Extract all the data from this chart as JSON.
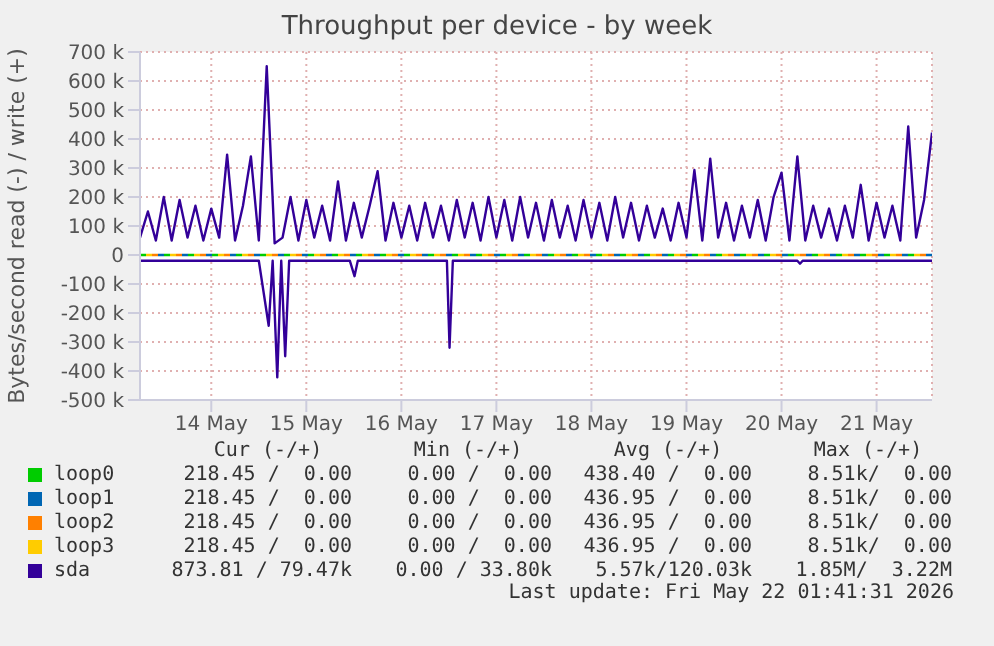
{
  "chart_data": {
    "type": "line",
    "title": "Throughput per device - by week",
    "ylabel": "Bytes/second read (-) / write (+)",
    "x": [
      "2026-05-13T18:00",
      "2026-05-13T20:00",
      "2026-05-13T22:00",
      "2026-05-14T00:00",
      "2026-05-14T02:00",
      "2026-05-14T04:00",
      "2026-05-14T06:00",
      "2026-05-14T08:00",
      "2026-05-14T10:00",
      "2026-05-14T12:00",
      "2026-05-14T14:00",
      "2026-05-14T16:00",
      "2026-05-14T18:00",
      "2026-05-14T20:00",
      "2026-05-14T22:00",
      "2026-05-15T00:00",
      "2026-05-15T02:00",
      "2026-05-15T04:00",
      "2026-05-15T06:00",
      "2026-05-15T08:00",
      "2026-05-15T10:00",
      "2026-05-15T12:00",
      "2026-05-15T14:00",
      "2026-05-15T16:00",
      "2026-05-15T18:00",
      "2026-05-15T20:00",
      "2026-05-15T22:00",
      "2026-05-16T00:00",
      "2026-05-16T02:00",
      "2026-05-16T04:00",
      "2026-05-16T06:00",
      "2026-05-16T08:00",
      "2026-05-16T10:00",
      "2026-05-16T12:00",
      "2026-05-16T14:00",
      "2026-05-16T16:00",
      "2026-05-16T18:00",
      "2026-05-16T20:00",
      "2026-05-16T22:00",
      "2026-05-17T00:00",
      "2026-05-17T02:00",
      "2026-05-17T04:00",
      "2026-05-17T06:00",
      "2026-05-17T08:00",
      "2026-05-17T10:00",
      "2026-05-17T12:00",
      "2026-05-17T14:00",
      "2026-05-17T16:00",
      "2026-05-17T18:00",
      "2026-05-17T20:00",
      "2026-05-17T22:00",
      "2026-05-18T00:00",
      "2026-05-18T02:00",
      "2026-05-18T04:00",
      "2026-05-18T06:00",
      "2026-05-18T08:00",
      "2026-05-18T10:00",
      "2026-05-18T12:00",
      "2026-05-18T14:00",
      "2026-05-18T16:00",
      "2026-05-18T18:00",
      "2026-05-18T20:00",
      "2026-05-18T22:00",
      "2026-05-19T00:00",
      "2026-05-19T02:00",
      "2026-05-19T04:00",
      "2026-05-19T06:00",
      "2026-05-19T08:00",
      "2026-05-19T10:00",
      "2026-05-19T12:00",
      "2026-05-19T14:00",
      "2026-05-19T16:00",
      "2026-05-19T18:00",
      "2026-05-19T20:00",
      "2026-05-19T22:00",
      "2026-05-20T00:00",
      "2026-05-20T02:00",
      "2026-05-20T04:00",
      "2026-05-20T06:00",
      "2026-05-20T08:00",
      "2026-05-20T10:00",
      "2026-05-20T12:00",
      "2026-05-20T14:00",
      "2026-05-20T16:00",
      "2026-05-20T18:00",
      "2026-05-20T20:00",
      "2026-05-20T22:00",
      "2026-05-21T00:00",
      "2026-05-21T02:00",
      "2026-05-21T04:00",
      "2026-05-21T06:00",
      "2026-05-21T08:00",
      "2026-05-21T10:00",
      "2026-05-21T12:00",
      "2026-05-21T14:00",
      "2026-05-21T16:00",
      "2026-05-21T18:00",
      "2026-05-21T20:00",
      "2026-05-21T22:00",
      "2026-05-22T00:00",
      "2026-05-22T02:00"
    ],
    "series": [
      {
        "name": "loop0",
        "color": "#00cc00",
        "line_style": "dotted",
        "x": [
          "2026-05-13T18:00",
          "2026-05-22T02:00"
        ],
        "values": [
          0,
          0
        ]
      },
      {
        "name": "loop1",
        "color": "#0066b3",
        "line_style": "dotted",
        "x": [
          "2026-05-13T18:00",
          "2026-05-22T02:00"
        ],
        "values": [
          0,
          0
        ]
      },
      {
        "name": "loop2",
        "color": "#ff8000",
        "line_style": "dotted",
        "x": [
          "2026-05-13T18:00",
          "2026-05-22T02:00"
        ],
        "values": [
          0,
          0
        ]
      },
      {
        "name": "loop3",
        "color": "#ffcc00",
        "line_style": "dotted",
        "x": [
          "2026-05-13T18:00",
          "2026-05-22T02:00"
        ],
        "values": [
          0,
          0
        ]
      },
      {
        "name": "sda",
        "color": "#330099",
        "values": [
          60000,
          150000,
          50000,
          200000,
          50000,
          190000,
          60000,
          170000,
          50000,
          160000,
          60000,
          346000,
          50000,
          170000,
          340000,
          50000,
          651000,
          40000,
          60000,
          200000,
          50000,
          190000,
          60000,
          170000,
          50000,
          254000,
          50000,
          180000,
          60000,
          170000,
          289000,
          50000,
          180000,
          60000,
          170000,
          50000,
          180000,
          60000,
          170000,
          50000,
          190000,
          60000,
          180000,
          50000,
          200000,
          60000,
          190000,
          50000,
          200000,
          60000,
          180000,
          50000,
          190000,
          60000,
          170000,
          50000,
          190000,
          60000,
          180000,
          50000,
          200000,
          60000,
          180000,
          50000,
          170000,
          60000,
          160000,
          50000,
          180000,
          60000,
          293000,
          50000,
          332000,
          60000,
          180000,
          50000,
          170000,
          60000,
          190000,
          50000,
          200000,
          284000,
          50000,
          340000,
          50000,
          170000,
          60000,
          160000,
          50000,
          170000,
          60000,
          242000,
          50000,
          180000,
          60000,
          170000,
          50000,
          443000,
          60000,
          190000,
          422000
        ]
      },
      {
        "color": "#330099",
        "x": [
          "2026-05-13T18:00",
          "2026-05-15T00:00",
          "2026-05-15T02:30",
          "2026-05-15T03:30",
          "2026-05-15T04:40",
          "2026-05-15T05:40",
          "2026-05-15T06:40",
          "2026-05-15T07:40",
          "2026-05-15T23:00",
          "2026-05-16T00:10",
          "2026-05-16T01:00",
          "2026-05-16T23:30",
          "2026-05-17T00:10",
          "2026-05-17T01:00",
          "2026-05-20T16:00",
          "2026-05-20T16:40",
          "2026-05-20T17:20",
          "2026-05-22T02:00"
        ],
        "values": [
          -20000,
          -20000,
          -244000,
          -20000,
          -422000,
          -20000,
          -349000,
          -20000,
          -20000,
          -73000,
          -20000,
          -20000,
          -320000,
          -20000,
          -20000,
          -30000,
          -20000,
          -20000
        ]
      }
    ],
    "xlim": [
      "2026-05-13T18:00",
      "2026-05-22T02:00"
    ],
    "xticks": [
      {
        "value": "2026-05-14T12:00",
        "label": "14 May"
      },
      {
        "value": "2026-05-15T12:00",
        "label": "15 May"
      },
      {
        "value": "2026-05-16T12:00",
        "label": "16 May"
      },
      {
        "value": "2026-05-17T12:00",
        "label": "17 May"
      },
      {
        "value": "2026-05-18T12:00",
        "label": "18 May"
      },
      {
        "value": "2026-05-19T12:00",
        "label": "19 May"
      },
      {
        "value": "2026-05-20T12:00",
        "label": "20 May"
      },
      {
        "value": "2026-05-21T12:00",
        "label": "21 May"
      }
    ],
    "ylim": [
      -500000,
      700000
    ],
    "yticks": [
      {
        "value": -500000,
        "label": "-500 k"
      },
      {
        "value": -400000,
        "label": "-400 k"
      },
      {
        "value": -300000,
        "label": "-300 k"
      },
      {
        "value": -200000,
        "label": "-200 k"
      },
      {
        "value": -100000,
        "label": "-100 k"
      },
      0,
      {
        "value": 100000,
        "label": "100 k"
      },
      {
        "value": 200000,
        "label": "200 k"
      },
      {
        "value": 300000,
        "label": "300 k"
      },
      {
        "value": 400000,
        "label": "400 k"
      },
      {
        "value": 500000,
        "label": "500 k"
      },
      {
        "value": 600000,
        "label": "600 k"
      },
      {
        "value": 700000,
        "label": "700 k"
      }
    ],
    "grid": true,
    "legend": "bottom",
    "marker": "none",
    "line_style": "solid",
    "annotations": [
      "Cur (-/+)",
      "Min (-/+)",
      "Avg (-/+)",
      "Max (-/+)",
      "218.45 /  0.00",
      "0.00 /  0.00",
      "438.40 /  0.00",
      "8.51k/  0.00",
      "218.45 /  0.00",
      "0.00 /  0.00",
      "436.95 /  0.00",
      "8.51k/  0.00",
      "218.45 /  0.00",
      "0.00 /  0.00",
      "436.95 /  0.00",
      "8.51k/  0.00",
      "218.45 /  0.00",
      "0.00 /  0.00",
      "436.95 /  0.00",
      "8.51k/  0.00",
      "873.81 / 79.47k",
      "0.00 / 33.80k",
      "5.57k/120.03k",
      "1.85M/  3.22M",
      "Last update: Fri May 22 01:41:31 2026"
    ]
  }
}
